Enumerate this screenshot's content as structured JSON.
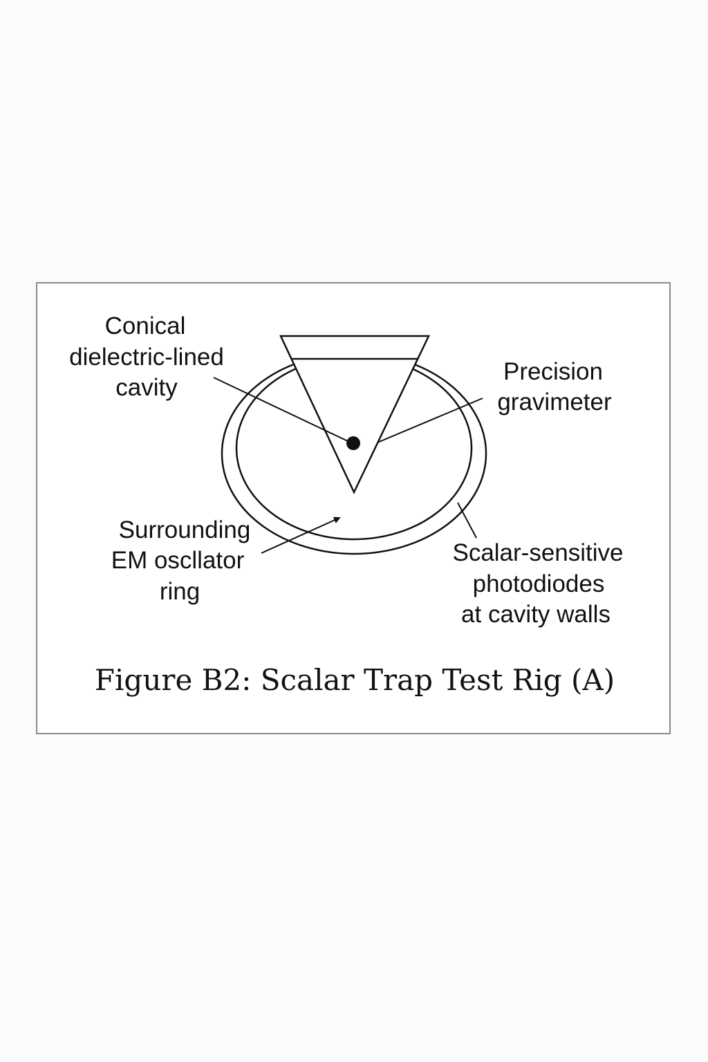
{
  "figure": {
    "caption": "Figure B2: Scalar Trap Test Rig (A)"
  },
  "labels": {
    "cavity": [
      "Conical",
      "dielectric-lined",
      "cavity"
    ],
    "gravimeter": [
      "Precision",
      "gravimeter"
    ],
    "ring": [
      "Surrounding",
      "EM oscllator",
      "ring"
    ],
    "photodiodes": [
      "Scalar-sensitive",
      "photodiodes",
      "at cavity walls"
    ]
  },
  "colors": {
    "ink": "#111111",
    "frame": "#8a8a8a",
    "background": "#fbfbfb"
  }
}
